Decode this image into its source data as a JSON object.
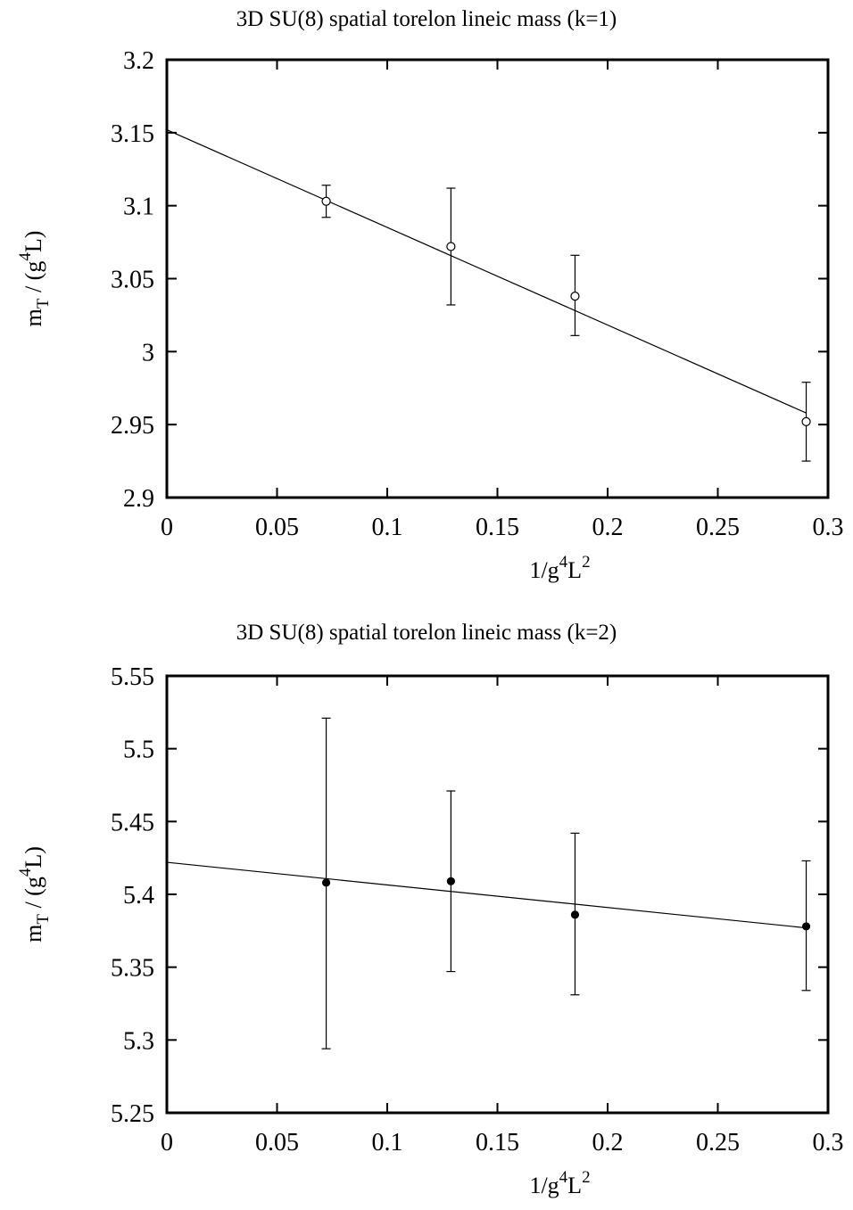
{
  "chart_data": [
    {
      "type": "scatter",
      "title": "3D SU(8) spatial torelon lineic mass (k=1)",
      "xlabel": {
        "base": "1/g",
        "sup1": "4",
        "mid": "L",
        "sup2": "2"
      },
      "ylabel": {
        "pre": "m",
        "sub": "T",
        "mid": " / (g",
        "sup": "4",
        "post": "L)"
      },
      "xlim": [
        0,
        0.3
      ],
      "ylim": [
        2.9,
        3.2
      ],
      "x_ticks": [
        "0",
        "0.05",
        "0.1",
        "0.15",
        "0.2",
        "0.25",
        "0.3"
      ],
      "y_ticks": [
        "2.9",
        "2.95",
        "3",
        "3.05",
        "3.1",
        "3.15",
        "3.2"
      ],
      "marker": "open-circle",
      "series": [
        {
          "x": [
            0.0723,
            0.1289,
            0.1852,
            0.2901
          ],
          "y": [
            3.103,
            3.072,
            3.038,
            2.952
          ],
          "yerr_low": [
            3.092,
            3.032,
            3.011,
            2.925
          ],
          "yerr_high": [
            3.114,
            3.112,
            3.066,
            2.979
          ]
        }
      ],
      "fit": {
        "x": [
          0,
          0.29
        ],
        "y": [
          3.152,
          2.958
        ]
      }
    },
    {
      "type": "scatter",
      "title": "3D SU(8) spatial torelon lineic mass (k=2)",
      "xlabel": {
        "base": "1/g",
        "sup1": "4",
        "mid": "L",
        "sup2": "2"
      },
      "ylabel": {
        "pre": "m",
        "sub": "T",
        "mid": " / (g",
        "sup": "4",
        "post": "L)"
      },
      "xlim": [
        0,
        0.3
      ],
      "ylim": [
        5.25,
        5.55
      ],
      "x_ticks": [
        "0",
        "0.05",
        "0.1",
        "0.15",
        "0.2",
        "0.25",
        "0.3"
      ],
      "y_ticks": [
        "5.25",
        "5.3",
        "5.35",
        "5.4",
        "5.45",
        "5.5",
        "5.55"
      ],
      "marker": "filled-circle",
      "series": [
        {
          "x": [
            0.0723,
            0.1289,
            0.1852,
            0.2901
          ],
          "y": [
            5.408,
            5.409,
            5.386,
            5.378
          ],
          "yerr_low": [
            5.294,
            5.347,
            5.331,
            5.334
          ],
          "yerr_high": [
            5.521,
            5.471,
            5.442,
            5.423
          ]
        }
      ],
      "fit": {
        "x": [
          0,
          0.29
        ],
        "y": [
          5.422,
          5.377
        ]
      }
    }
  ]
}
